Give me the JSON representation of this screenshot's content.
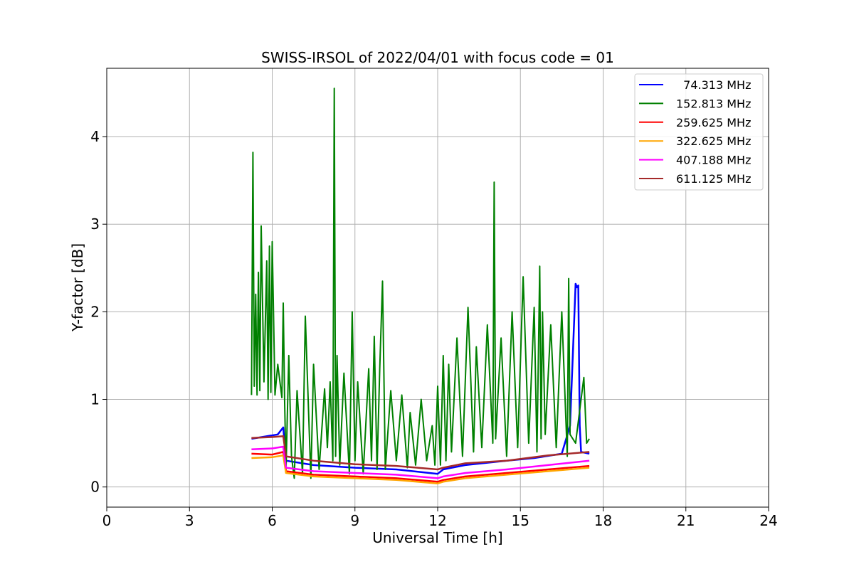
{
  "chart_data": {
    "type": "line",
    "title": "SWISS-IRSOL of 2022/04/01 with focus code = 01",
    "xlabel": "Universal Time [h]",
    "ylabel": "Y-factor [dB]",
    "xlim": [
      0,
      24
    ],
    "ylim": [
      -0.23,
      4.78
    ],
    "xticks": [
      0,
      3,
      6,
      9,
      12,
      15,
      18,
      21,
      24
    ],
    "yticks": [
      0,
      1,
      2,
      3,
      4
    ],
    "grid": true,
    "legend_position": "top-right",
    "series": [
      {
        "name": "  74.313 MHz",
        "color": "#0000ff",
        "x": [
          5.25,
          6.2,
          6.4,
          6.5,
          7.5,
          9.0,
          10.5,
          12.0,
          12.2,
          13.0,
          14.5,
          15.5,
          16.5,
          16.8,
          16.95,
          17.0,
          17.05,
          17.1,
          17.15,
          17.2,
          17.5
        ],
        "y": [
          0.55,
          0.6,
          0.68,
          0.3,
          0.25,
          0.22,
          0.2,
          0.15,
          0.2,
          0.25,
          0.3,
          0.33,
          0.38,
          0.7,
          1.9,
          2.32,
          2.28,
          2.3,
          0.7,
          0.4,
          0.38
        ]
      },
      {
        "name": "152.813 MHz",
        "color": "#008000",
        "x": [
          5.25,
          5.3,
          5.35,
          5.4,
          5.45,
          5.5,
          5.55,
          5.6,
          5.7,
          5.8,
          5.85,
          5.9,
          5.95,
          6.0,
          6.1,
          6.2,
          6.35,
          6.4,
          6.45,
          6.5,
          6.6,
          6.7,
          6.8,
          6.9,
          7.1,
          7.2,
          7.4,
          7.5,
          7.7,
          7.9,
          8.0,
          8.1,
          8.2,
          8.25,
          8.3,
          8.35,
          8.45,
          8.6,
          8.8,
          8.9,
          9.0,
          9.1,
          9.3,
          9.5,
          9.6,
          9.7,
          9.8,
          9.9,
          10.0,
          10.1,
          10.3,
          10.5,
          10.7,
          10.9,
          11.0,
          11.2,
          11.4,
          11.6,
          11.8,
          11.9,
          12.0,
          12.1,
          12.2,
          12.3,
          12.4,
          12.5,
          12.7,
          12.9,
          13.1,
          13.3,
          13.4,
          13.6,
          13.8,
          14.0,
          14.05,
          14.1,
          14.3,
          14.5,
          14.7,
          14.9,
          15.1,
          15.3,
          15.5,
          15.6,
          15.7,
          15.75,
          15.8,
          15.9,
          16.1,
          16.3,
          16.5,
          16.7,
          16.75,
          16.8,
          17.0,
          17.2,
          17.3,
          17.4,
          17.5
        ],
        "y": [
          1.05,
          3.82,
          1.15,
          2.2,
          1.05,
          2.45,
          1.1,
          2.98,
          1.2,
          2.58,
          1.0,
          2.75,
          1.08,
          2.8,
          1.05,
          1.4,
          1.02,
          2.1,
          1.0,
          0.2,
          1.5,
          0.35,
          0.1,
          1.1,
          0.15,
          1.95,
          0.1,
          1.4,
          0.2,
          1.12,
          0.45,
          1.2,
          0.3,
          4.55,
          0.35,
          1.5,
          0.25,
          1.3,
          0.15,
          2.0,
          0.3,
          1.2,
          0.15,
          1.35,
          0.3,
          1.72,
          0.2,
          1.35,
          2.35,
          0.2,
          1.1,
          0.3,
          1.05,
          0.22,
          0.85,
          0.25,
          1.0,
          0.3,
          0.7,
          0.25,
          1.15,
          0.25,
          1.5,
          0.3,
          1.4,
          0.4,
          1.7,
          0.35,
          2.05,
          0.4,
          1.6,
          0.45,
          1.85,
          0.5,
          3.48,
          0.55,
          1.7,
          0.35,
          2.0,
          0.45,
          2.4,
          0.5,
          2.05,
          0.4,
          2.52,
          0.55,
          2.0,
          0.6,
          1.85,
          0.45,
          2.0,
          0.35,
          2.38,
          0.6,
          0.5,
          1.0,
          1.25,
          0.5,
          0.55
        ]
      },
      {
        "name": "259.625 MHz",
        "color": "#ff0000",
        "x": [
          5.25,
          6.0,
          6.4,
          6.5,
          7.5,
          9.0,
          10.5,
          12.0,
          12.2,
          13.0,
          14.5,
          16.0,
          17.5
        ],
        "y": [
          0.38,
          0.37,
          0.4,
          0.18,
          0.14,
          0.12,
          0.1,
          0.06,
          0.08,
          0.12,
          0.16,
          0.2,
          0.24
        ]
      },
      {
        "name": "322.625 MHz",
        "color": "#ffa500",
        "x": [
          5.25,
          6.0,
          6.4,
          6.5,
          7.5,
          9.0,
          10.5,
          12.0,
          12.2,
          13.0,
          14.5,
          16.0,
          17.5
        ],
        "y": [
          0.33,
          0.34,
          0.36,
          0.16,
          0.12,
          0.1,
          0.08,
          0.04,
          0.06,
          0.1,
          0.14,
          0.18,
          0.22
        ]
      },
      {
        "name": "407.188 MHz",
        "color": "#ff00ff",
        "x": [
          5.25,
          6.0,
          6.4,
          6.5,
          7.5,
          9.0,
          10.5,
          12.0,
          12.2,
          13.0,
          14.5,
          16.0,
          17.5
        ],
        "y": [
          0.43,
          0.44,
          0.46,
          0.22,
          0.18,
          0.16,
          0.14,
          0.1,
          0.12,
          0.16,
          0.2,
          0.25,
          0.3
        ]
      },
      {
        "name": "611.125 MHz",
        "color": "#a52a2a",
        "x": [
          5.25,
          6.0,
          6.4,
          6.5,
          7.5,
          9.0,
          10.5,
          12.0,
          12.2,
          13.0,
          14.5,
          16.0,
          17.5
        ],
        "y": [
          0.56,
          0.57,
          0.58,
          0.35,
          0.3,
          0.26,
          0.24,
          0.2,
          0.22,
          0.27,
          0.3,
          0.36,
          0.4
        ]
      }
    ]
  }
}
